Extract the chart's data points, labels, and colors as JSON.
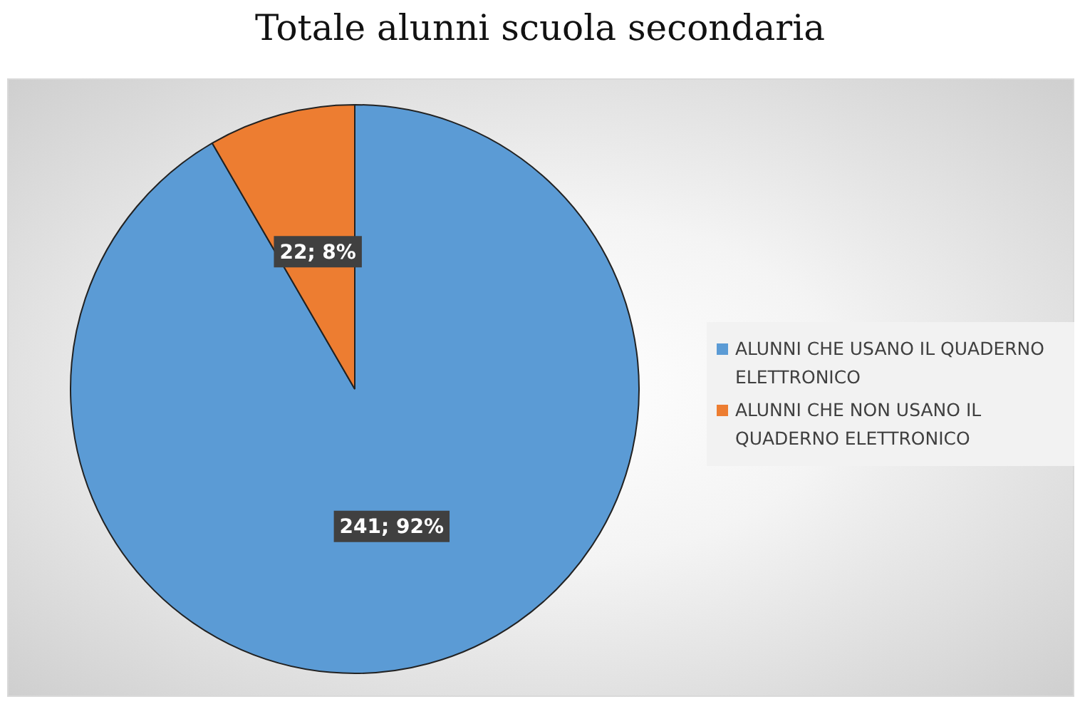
{
  "chart_data": {
    "type": "pie",
    "title": "Totale alunni scuola secondaria",
    "categories": [
      "ALUNNI CHE USANO IL QUADERNO ELETTRONICO",
      "ALUNNI CHE NON USANO IL QUADERNO ELETTRONICO"
    ],
    "values": [
      241,
      22
    ],
    "colors": [
      "#5b9bd5",
      "#ed7d31"
    ],
    "value_labels": [
      "241; 92%",
      "22; 8%"
    ],
    "legend": "right"
  }
}
